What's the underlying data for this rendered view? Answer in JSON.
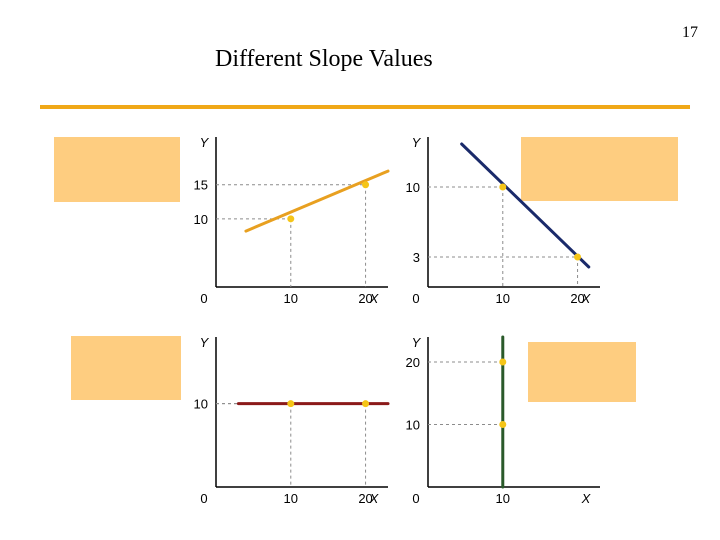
{
  "page_number": "17",
  "title": "Different Slope Values",
  "colors": {
    "accent_rule": "#f0a818",
    "note_box": "#fecd80",
    "point": "#f5c518",
    "axis": "#000000",
    "guide": "#8c8c8c"
  },
  "chart_data": [
    {
      "type": "line",
      "xlabel": "X",
      "ylabel": "Y",
      "origin_label": "0",
      "x_ticks": [
        10,
        20
      ],
      "y_ticks": [
        10,
        15
      ],
      "xlim": [
        0,
        23
      ],
      "ylim": [
        0,
        22
      ],
      "line_color": "#e8a020",
      "line": [
        [
          4,
          8.2
        ],
        [
          23,
          17
        ]
      ],
      "points": [
        [
          10,
          10
        ],
        [
          20,
          15
        ]
      ]
    },
    {
      "type": "line",
      "xlabel": "X",
      "ylabel": "Y",
      "origin_label": "0",
      "x_ticks": [
        10,
        20
      ],
      "y_ticks": [
        3,
        10
      ],
      "xlim": [
        0,
        23
      ],
      "ylim": [
        0,
        15
      ],
      "line_color": "#1a2a6a",
      "line": [
        [
          4.5,
          14.3
        ],
        [
          21.5,
          2
        ]
      ],
      "points": [
        [
          10,
          10
        ],
        [
          20,
          3
        ]
      ]
    },
    {
      "type": "line",
      "xlabel": "X",
      "ylabel": "Y",
      "origin_label": "0",
      "x_ticks": [
        10,
        20
      ],
      "y_ticks": [
        10
      ],
      "xlim": [
        0,
        23
      ],
      "ylim": [
        0,
        18
      ],
      "line_color": "#8b1a1a",
      "line": [
        [
          3,
          10
        ],
        [
          23,
          10
        ]
      ],
      "points": [
        [
          10,
          10
        ],
        [
          20,
          10
        ]
      ]
    },
    {
      "type": "line",
      "xlabel": "X",
      "ylabel": "Y",
      "origin_label": "0",
      "x_ticks": [
        10
      ],
      "y_ticks": [
        10,
        20
      ],
      "xlim": [
        0,
        23
      ],
      "ylim": [
        0,
        24
      ],
      "line_color": "#2a5a2a",
      "line": [
        [
          10,
          0
        ],
        [
          10,
          24
        ]
      ],
      "points": [
        [
          10,
          10
        ],
        [
          10,
          20
        ]
      ]
    }
  ]
}
